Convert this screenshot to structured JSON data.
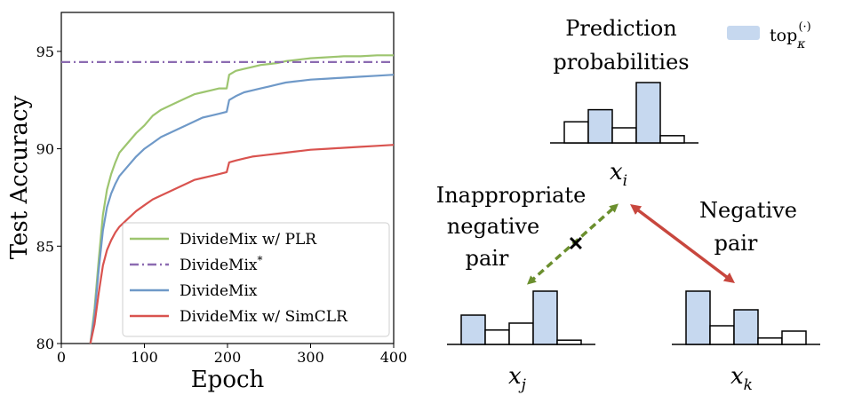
{
  "chart_data": {
    "type": "line",
    "xlabel": "Epoch",
    "ylabel": "Test Accuracy",
    "xlim": [
      0,
      400
    ],
    "ylim": [
      80,
      97
    ],
    "xticks": [
      0,
      100,
      200,
      300,
      400
    ],
    "yticks": [
      80,
      85,
      90,
      95
    ],
    "grid": false,
    "legend_position": "lower-right",
    "series": [
      {
        "name": "DivideMix w/ PLR",
        "color": "#9dc56f",
        "style": "solid",
        "x": [
          35,
          40,
          45,
          50,
          55,
          60,
          65,
          70,
          80,
          90,
          100,
          110,
          120,
          130,
          140,
          150,
          160,
          170,
          180,
          190,
          199,
          202,
          210,
          220,
          230,
          240,
          250,
          260,
          270,
          280,
          290,
          300,
          320,
          340,
          360,
          380,
          400
        ],
        "values": [
          80.0,
          81.8,
          84.3,
          86.6,
          87.9,
          88.7,
          89.3,
          89.8,
          90.3,
          90.8,
          91.2,
          91.7,
          92.0,
          92.2,
          92.4,
          92.6,
          92.8,
          92.9,
          93.0,
          93.1,
          93.1,
          93.8,
          94.0,
          94.1,
          94.2,
          94.3,
          94.35,
          94.4,
          94.5,
          94.55,
          94.6,
          94.65,
          94.7,
          94.75,
          94.75,
          94.8,
          94.8
        ]
      },
      {
        "name": "DivideMix*",
        "color": "#8c6bb1",
        "style": "dashdot",
        "x": [
          0,
          400
        ],
        "values": [
          94.45,
          94.45
        ]
      },
      {
        "name": "DivideMix",
        "color": "#6f99c8",
        "style": "solid",
        "x": [
          35,
          40,
          45,
          50,
          55,
          60,
          65,
          70,
          80,
          90,
          100,
          110,
          120,
          130,
          140,
          150,
          160,
          170,
          180,
          190,
          199,
          202,
          210,
          220,
          230,
          240,
          250,
          260,
          270,
          280,
          290,
          300,
          320,
          340,
          360,
          380,
          400
        ],
        "values": [
          80.0,
          81.5,
          83.8,
          85.8,
          87.0,
          87.7,
          88.2,
          88.6,
          89.1,
          89.6,
          90.0,
          90.3,
          90.6,
          90.8,
          91.0,
          91.2,
          91.4,
          91.6,
          91.7,
          91.8,
          91.9,
          92.5,
          92.7,
          92.9,
          93.0,
          93.1,
          93.2,
          93.3,
          93.4,
          93.45,
          93.5,
          93.55,
          93.6,
          93.65,
          93.7,
          93.75,
          93.8
        ]
      },
      {
        "name": "DivideMix w/ SimCLR",
        "color": "#d9534f",
        "style": "solid",
        "x": [
          35,
          40,
          45,
          50,
          55,
          60,
          65,
          70,
          80,
          90,
          100,
          110,
          120,
          130,
          140,
          150,
          160,
          170,
          180,
          190,
          199,
          202,
          210,
          220,
          230,
          240,
          250,
          260,
          270,
          280,
          290,
          300,
          320,
          340,
          360,
          380,
          400
        ],
        "values": [
          80.0,
          81.0,
          82.6,
          84.0,
          84.8,
          85.3,
          85.7,
          86.0,
          86.4,
          86.8,
          87.1,
          87.4,
          87.6,
          87.8,
          88.0,
          88.2,
          88.4,
          88.5,
          88.6,
          88.7,
          88.8,
          89.3,
          89.4,
          89.5,
          89.6,
          89.65,
          89.7,
          89.75,
          89.8,
          89.85,
          89.9,
          89.95,
          90.0,
          90.05,
          90.1,
          90.15,
          90.2
        ]
      }
    ]
  },
  "diagram": {
    "prediction_title_line1": "Prediction",
    "prediction_title_line2": "probabilities",
    "legend_label": "top",
    "legend_sub": "κ",
    "legend_sup": "(·)",
    "bar_fill": "#c6d8ef",
    "node_i": {
      "base": "x",
      "sub": "i",
      "bars": [
        0.35,
        0.55,
        0.25,
        1.0,
        0.12
      ],
      "highlight": [
        false,
        true,
        false,
        true,
        false
      ]
    },
    "node_j": {
      "base": "x",
      "sub": "j",
      "bars": [
        0.55,
        0.27,
        0.4,
        1.0,
        0.08
      ],
      "highlight": [
        true,
        false,
        false,
        true,
        false
      ]
    },
    "node_k": {
      "base": "x",
      "sub": "k",
      "bars": [
        1.0,
        0.35,
        0.65,
        0.12,
        0.25
      ],
      "highlight": [
        true,
        false,
        true,
        false,
        false
      ]
    },
    "inappropriate_line1": "Inappropriate",
    "inappropriate_line2": "negative",
    "inappropriate_line3": "pair",
    "negative_line1": "Negative",
    "negative_line2": "pair",
    "cross_mark": "✕",
    "inappropriate_color": "#6b8f2e",
    "negative_color": "#c8473e"
  }
}
